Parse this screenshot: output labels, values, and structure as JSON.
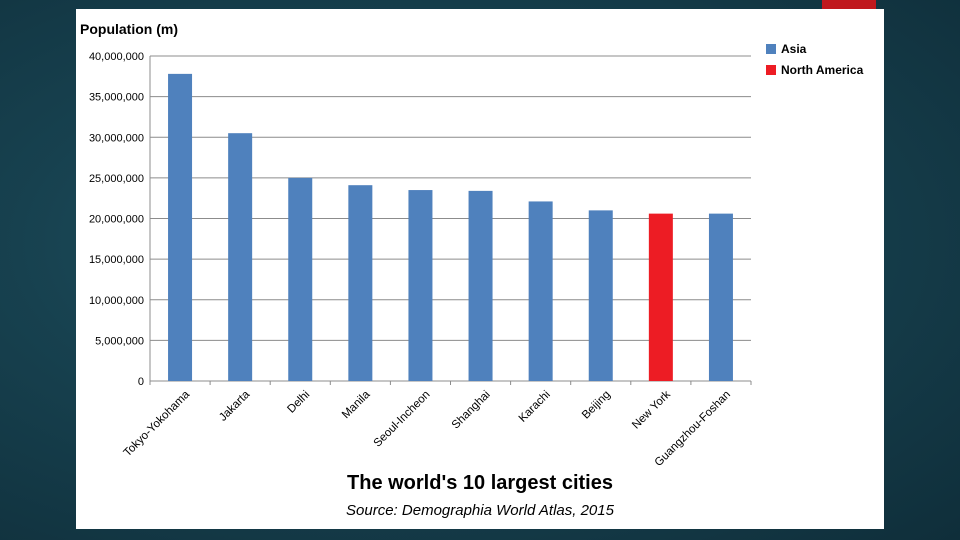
{
  "chart_data": {
    "type": "bar",
    "title": "The world's 10 largest cities",
    "subtitle": "Source: Demographia World Atlas, 2015",
    "ylabel": "Population (m)",
    "xlabel": "",
    "ylim": [
      0,
      40000000
    ],
    "yticks": [
      0,
      5000000,
      10000000,
      15000000,
      20000000,
      25000000,
      30000000,
      35000000,
      40000000
    ],
    "ytick_labels": [
      "0",
      "5,000,000",
      "10,000,000",
      "15,000,000",
      "20,000,000",
      "25,000,000",
      "30,000,000",
      "35,000,000",
      "40,000,000"
    ],
    "grid": true,
    "legend_position": "top-right",
    "categories": [
      "Tokyo-Yokohama",
      "Jakarta",
      "Delhi",
      "Manila",
      "Seoul-Incheon",
      "Shanghai",
      "Karachi",
      "Beijing",
      "New York",
      "Guangzhou-Foshan"
    ],
    "values": [
      37800000,
      30500000,
      25000000,
      24100000,
      23500000,
      23400000,
      22100000,
      21000000,
      20600000,
      20600000
    ],
    "groups": [
      "Asia",
      "Asia",
      "Asia",
      "Asia",
      "Asia",
      "Asia",
      "Asia",
      "Asia",
      "North America",
      "Asia"
    ],
    "legend": [
      {
        "name": "Asia",
        "color": "#4f81bd"
      },
      {
        "name": "North America",
        "color": "#ed1c24"
      }
    ]
  }
}
